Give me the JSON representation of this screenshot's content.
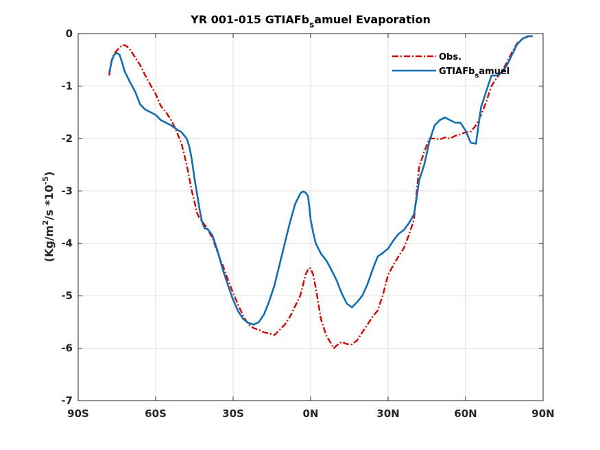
{
  "chart_data": {
    "type": "line",
    "title": {
      "prefix": "YR 001-015 GTIAFb",
      "sub": "s",
      "suffix": "amuel Evaporation"
    },
    "ylabel": {
      "p1": "(Kg/m",
      "sup1": "2",
      "p2": "/s *10",
      "sup2": "-5",
      "p3": ")"
    },
    "xlabel": "",
    "xlim": [
      -90,
      90
    ],
    "ylim": [
      -7,
      0
    ],
    "x_ticks": [
      -90,
      -60,
      -30,
      0,
      30,
      60,
      90
    ],
    "x_tick_labels": [
      "90S",
      "60S",
      "30S",
      "0N",
      "30N",
      "60N",
      "90N"
    ],
    "y_ticks": [
      0,
      -1,
      -2,
      -3,
      -4,
      -5,
      -6,
      -7
    ],
    "y_tick_labels": [
      "0",
      "-1",
      "-2",
      "-3",
      "-4",
      "-5",
      "-6",
      "-7"
    ],
    "grid": true,
    "legend_position": "top-right",
    "series": [
      {
        "name": "Obs.",
        "color": "#dd0000",
        "style": "dash-dot",
        "legend_label": {
          "text": "Obs."
        },
        "x": [
          -78,
          -77,
          -76,
          -75,
          -74,
          -73,
          -72,
          -71,
          -70,
          -68,
          -66,
          -64,
          -62,
          -60,
          -58,
          -56,
          -54,
          -52,
          -50,
          -48,
          -47,
          -46,
          -45,
          -44,
          -43,
          -42,
          -41,
          -40,
          -38,
          -36,
          -34,
          -32,
          -30,
          -28,
          -26,
          -24,
          -22,
          -20,
          -18,
          -16,
          -14,
          -13,
          -12,
          -10,
          -8,
          -6,
          -4,
          -3,
          -2,
          -1,
          -0.5,
          0,
          1,
          2,
          3,
          4,
          6,
          8,
          9,
          10,
          12,
          14,
          16,
          18,
          20,
          22,
          24,
          26,
          28,
          30,
          32,
          34,
          36,
          38,
          40,
          41,
          42,
          44,
          46,
          48,
          50,
          52,
          54,
          56,
          58,
          60,
          62,
          64,
          66,
          68,
          70,
          72,
          74,
          76,
          78,
          80,
          82,
          84,
          86
        ],
        "y": [
          -0.8,
          -0.5,
          -0.38,
          -0.32,
          -0.27,
          -0.22,
          -0.22,
          -0.25,
          -0.3,
          -0.45,
          -0.6,
          -0.8,
          -0.98,
          -1.15,
          -1.38,
          -1.5,
          -1.65,
          -1.85,
          -2.1,
          -2.5,
          -2.75,
          -3.0,
          -3.2,
          -3.42,
          -3.52,
          -3.58,
          -3.65,
          -3.72,
          -3.9,
          -4.18,
          -4.42,
          -4.7,
          -4.95,
          -5.18,
          -5.4,
          -5.55,
          -5.62,
          -5.65,
          -5.7,
          -5.72,
          -5.75,
          -5.7,
          -5.65,
          -5.55,
          -5.4,
          -5.2,
          -5.0,
          -4.8,
          -4.6,
          -4.5,
          -4.47,
          -4.48,
          -4.6,
          -4.85,
          -5.15,
          -5.45,
          -5.75,
          -5.92,
          -6.0,
          -5.95,
          -5.88,
          -5.92,
          -5.93,
          -5.85,
          -5.7,
          -5.55,
          -5.4,
          -5.28,
          -4.98,
          -4.6,
          -4.42,
          -4.25,
          -4.1,
          -3.85,
          -3.55,
          -3.05,
          -2.55,
          -2.25,
          -2.0,
          -2.0,
          -2.02,
          -1.98,
          -2.0,
          -1.95,
          -1.92,
          -1.88,
          -1.87,
          -1.75,
          -1.55,
          -1.3,
          -1.0,
          -0.85,
          -0.72,
          -0.55,
          -0.35,
          -0.18,
          -0.1,
          -0.06,
          -0.05
        ]
      },
      {
        "name": "GTIAFb_s amuel",
        "color": "#0d6fb5",
        "style": "solid",
        "legend_label": {
          "prefix": "GTIAFb",
          "sub": "s",
          "suffix": "amuel"
        },
        "x": [
          -78,
          -77,
          -76,
          -75,
          -74,
          -73,
          -72,
          -71,
          -70,
          -68,
          -66,
          -64,
          -62,
          -60,
          -58,
          -56,
          -54,
          -52,
          -50,
          -48,
          -47,
          -46,
          -45,
          -44,
          -43,
          -42,
          -41,
          -40,
          -38,
          -36,
          -34,
          -32,
          -30,
          -28,
          -26,
          -24,
          -22,
          -20,
          -18,
          -16,
          -14,
          -13,
          -12,
          -10,
          -8,
          -6,
          -4,
          -3,
          -2,
          -1,
          -0.5,
          0,
          1,
          2,
          3,
          4,
          6,
          8,
          10,
          12,
          14,
          16,
          18,
          20,
          22,
          24,
          26,
          28,
          30,
          32,
          34,
          36,
          38,
          40,
          41,
          42,
          44,
          46,
          48,
          50,
          52,
          54,
          56,
          58,
          60,
          62,
          64,
          66,
          68,
          70,
          72,
          74,
          76,
          78,
          80,
          82,
          84,
          86
        ],
        "y": [
          -0.75,
          -0.52,
          -0.4,
          -0.37,
          -0.4,
          -0.55,
          -0.72,
          -0.82,
          -0.92,
          -1.1,
          -1.35,
          -1.45,
          -1.5,
          -1.55,
          -1.65,
          -1.7,
          -1.75,
          -1.82,
          -1.88,
          -2.0,
          -2.15,
          -2.4,
          -2.75,
          -3.05,
          -3.35,
          -3.6,
          -3.72,
          -3.72,
          -3.85,
          -4.15,
          -4.5,
          -4.8,
          -5.08,
          -5.3,
          -5.45,
          -5.52,
          -5.55,
          -5.5,
          -5.35,
          -5.1,
          -4.8,
          -4.6,
          -4.4,
          -4.0,
          -3.6,
          -3.25,
          -3.05,
          -3.01,
          -3.03,
          -3.1,
          -3.3,
          -3.55,
          -3.8,
          -4.0,
          -4.1,
          -4.2,
          -4.32,
          -4.5,
          -4.7,
          -4.95,
          -5.15,
          -5.22,
          -5.12,
          -5.0,
          -4.78,
          -4.5,
          -4.25,
          -4.18,
          -4.1,
          -3.95,
          -3.82,
          -3.75,
          -3.62,
          -3.45,
          -3.15,
          -2.8,
          -2.5,
          -2.05,
          -1.75,
          -1.65,
          -1.6,
          -1.65,
          -1.7,
          -1.7,
          -1.85,
          -2.08,
          -2.1,
          -1.4,
          -1.1,
          -0.8,
          -0.8,
          -0.75,
          -0.6,
          -0.4,
          -0.2,
          -0.1,
          -0.05,
          -0.05
        ]
      }
    ]
  }
}
